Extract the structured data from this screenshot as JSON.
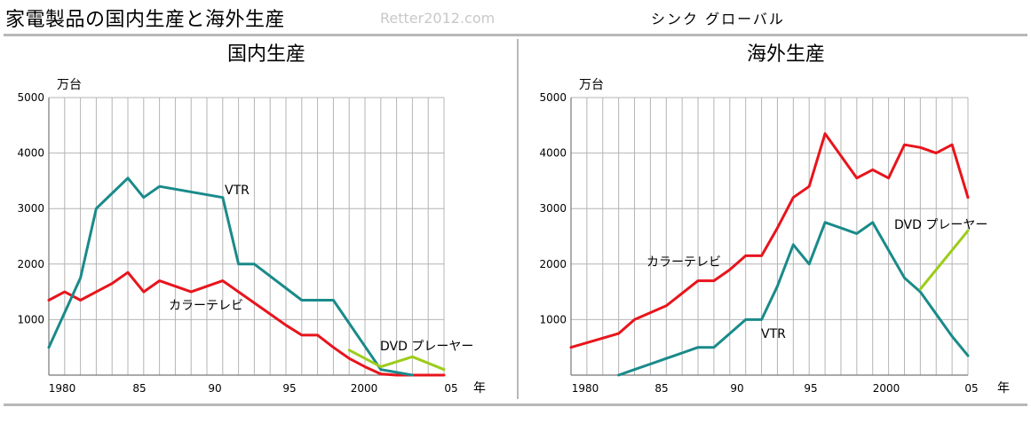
{
  "header": {
    "title": "家電製品の国内生産と海外生産",
    "site": "Retter2012.com",
    "brand": "シンク グローバル"
  },
  "colors": {
    "color_tv": "#e8141c",
    "vtr": "#1a8a8a",
    "dvd": "#9ccc1c",
    "grid": "#b4b4b4"
  },
  "chart_data": [
    {
      "type": "line",
      "title": "国内生産",
      "ylabel": "万台",
      "xlabel": "年",
      "xlim": [
        1980,
        2005
      ],
      "ylim": [
        0,
        5000
      ],
      "grid": true,
      "x_tick_labels": [
        "1980",
        "85",
        "90",
        "95",
        "2000",
        "05"
      ],
      "y_tick_labels": [
        "1000",
        "2000",
        "3000",
        "4000",
        "5000"
      ],
      "series": [
        {
          "name": "カラーテレビ",
          "color": "#e8141c",
          "x": [
            1980,
            1981,
            1982,
            1983,
            1984,
            1985,
            1986,
            1987,
            1988,
            1989,
            1990,
            1991,
            1992,
            1993,
            1994,
            1995,
            1996,
            1997,
            1998,
            1999,
            2000,
            2001,
            2002,
            2003,
            2004,
            2005
          ],
          "y": [
            1350,
            1500,
            1350,
            1500,
            1650,
            1850,
            1500,
            1700,
            1600,
            1500,
            1600,
            1700,
            1500,
            1300,
            1100,
            900,
            720,
            720,
            500,
            300,
            150,
            20,
            0,
            0,
            0,
            0
          ]
        },
        {
          "name": "VTR",
          "color": "#1a8a8a",
          "x": [
            1980,
            1982,
            1983,
            1985,
            1986,
            1987,
            1991,
            1992,
            1993,
            1996,
            1998,
            2001,
            2002,
            2003
          ],
          "y": [
            500,
            1750,
            3000,
            3550,
            3200,
            3400,
            3200,
            2000,
            2000,
            1350,
            1350,
            100,
            50,
            0
          ]
        },
        {
          "name": "DVD プレーヤー",
          "color": "#9ccc1c",
          "x": [
            1999,
            2001,
            2003,
            2005
          ],
          "y": [
            450,
            150,
            330,
            100
          ]
        }
      ]
    },
    {
      "type": "line",
      "title": "海外生産",
      "ylabel": "万台",
      "xlabel": "年",
      "xlim": [
        1980,
        2005
      ],
      "ylim": [
        0,
        5000
      ],
      "grid": true,
      "x_tick_labels": [
        "1980",
        "85",
        "90",
        "95",
        "2000",
        "05"
      ],
      "y_tick_labels": [
        "1000",
        "2000",
        "3000",
        "4000",
        "5000"
      ],
      "series": [
        {
          "name": "カラーテレビ",
          "color": "#e8141c",
          "x": [
            1980,
            1983,
            1984,
            1986,
            1988,
            1989,
            1990,
            1991,
            1992,
            1993,
            1994,
            1995,
            1996,
            1997,
            1998,
            1999,
            2000,
            2001,
            2002,
            2003,
            2004,
            2005
          ],
          "y": [
            500,
            750,
            1000,
            1250,
            1700,
            1700,
            1900,
            2150,
            2150,
            2650,
            3200,
            3400,
            4350,
            3950,
            3550,
            3700,
            3550,
            4150,
            4100,
            4000,
            4150,
            3200
          ]
        },
        {
          "name": "VTR",
          "color": "#1a8a8a",
          "x": [
            1983,
            1984,
            1985,
            1986,
            1987,
            1988,
            1989,
            1990,
            1991,
            1992,
            1993,
            1994,
            1995,
            1996,
            1997,
            1998,
            1999,
            2000,
            2001,
            2002,
            2003,
            2004,
            2005
          ],
          "y": [
            0,
            100,
            200,
            300,
            400,
            500,
            500,
            750,
            1000,
            1000,
            1600,
            2350,
            2000,
            2750,
            2650,
            2550,
            2750,
            2250,
            1750,
            1500,
            1100,
            700,
            350
          ]
        },
        {
          "name": "DVD プレーヤー",
          "color": "#9ccc1c",
          "x": [
            2002,
            2005
          ],
          "y": [
            1550,
            2600
          ]
        }
      ]
    }
  ]
}
